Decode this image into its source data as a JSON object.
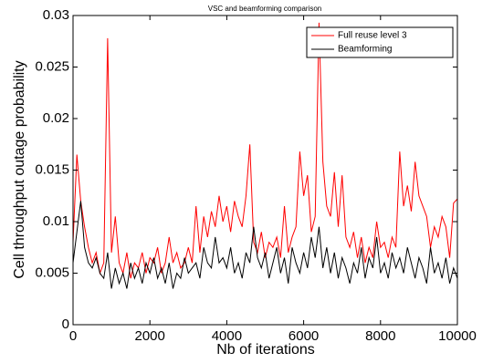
{
  "chart_data": {
    "type": "line",
    "title": "VSC and beamforming comparison",
    "xlabel": "Nb of iterations",
    "ylabel": "Cell throughput outage probability",
    "x": [
      0,
      100,
      200,
      300,
      400,
      500,
      600,
      700,
      800,
      900,
      1000,
      1100,
      1200,
      1300,
      1400,
      1500,
      1600,
      1700,
      1800,
      1900,
      2000,
      2100,
      2200,
      2300,
      2400,
      2500,
      2600,
      2700,
      2800,
      2900,
      3000,
      3100,
      3200,
      3300,
      3400,
      3500,
      3600,
      3700,
      3800,
      3900,
      4000,
      4100,
      4200,
      4300,
      4400,
      4500,
      4600,
      4700,
      4800,
      4900,
      5000,
      5100,
      5200,
      5300,
      5400,
      5500,
      5600,
      5700,
      5800,
      5900,
      6000,
      6100,
      6200,
      6300,
      6400,
      6500,
      6600,
      6700,
      6800,
      6900,
      7000,
      7100,
      7200,
      7300,
      7400,
      7500,
      7600,
      7700,
      7800,
      7900,
      8000,
      8100,
      8200,
      8300,
      8400,
      8500,
      8600,
      8700,
      8800,
      8900,
      9000,
      9100,
      9200,
      9300,
      9400,
      9500,
      9600,
      9700,
      9800,
      9900,
      10000
    ],
    "series": [
      {
        "name": "Full reuse level 3",
        "color": "#ff0000",
        "values": [
          0.008,
          0.0165,
          0.012,
          0.0095,
          0.0075,
          0.006,
          0.007,
          0.005,
          0.006,
          0.0278,
          0.007,
          0.0105,
          0.006,
          0.005,
          0.007,
          0.0045,
          0.006,
          0.0055,
          0.007,
          0.005,
          0.0065,
          0.006,
          0.0075,
          0.005,
          0.006,
          0.0085,
          0.006,
          0.007,
          0.0055,
          0.006,
          0.0075,
          0.006,
          0.0115,
          0.007,
          0.0105,
          0.0085,
          0.011,
          0.0095,
          0.0125,
          0.01,
          0.0115,
          0.009,
          0.012,
          0.0105,
          0.0095,
          0.0125,
          0.0175,
          0.008,
          0.007,
          0.009,
          0.0065,
          0.008,
          0.0075,
          0.0085,
          0.0065,
          0.0115,
          0.007,
          0.0085,
          0.0095,
          0.0168,
          0.0125,
          0.0145,
          0.009,
          0.0105,
          0.0293,
          0.0158,
          0.0115,
          0.0105,
          0.0148,
          0.0095,
          0.0145,
          0.0085,
          0.0075,
          0.009,
          0.0065,
          0.0085,
          0.006,
          0.0075,
          0.0065,
          0.01,
          0.0075,
          0.008,
          0.0065,
          0.0085,
          0.0075,
          0.0168,
          0.0115,
          0.0135,
          0.011,
          0.0158,
          0.0125,
          0.0115,
          0.0105,
          0.0075,
          0.0095,
          0.0085,
          0.0105,
          0.0095,
          0.0065,
          0.0118,
          0.0122
        ]
      },
      {
        "name": "Beamforming",
        "color": "#000000",
        "values": [
          0.006,
          0.009,
          0.012,
          0.0075,
          0.006,
          0.0055,
          0.0065,
          0.005,
          0.0045,
          0.007,
          0.0035,
          0.0055,
          0.004,
          0.005,
          0.0035,
          0.006,
          0.0045,
          0.0055,
          0.004,
          0.006,
          0.005,
          0.0065,
          0.0045,
          0.0055,
          0.004,
          0.006,
          0.0035,
          0.005,
          0.0045,
          0.0065,
          0.005,
          0.0055,
          0.006,
          0.0045,
          0.0075,
          0.006,
          0.0055,
          0.0085,
          0.006,
          0.0065,
          0.0055,
          0.0075,
          0.005,
          0.006,
          0.0045,
          0.007,
          0.006,
          0.0095,
          0.0065,
          0.0055,
          0.007,
          0.0045,
          0.006,
          0.0075,
          0.005,
          0.0065,
          0.004,
          0.0075,
          0.006,
          0.005,
          0.007,
          0.0055,
          0.0085,
          0.0065,
          0.0095,
          0.0055,
          0.0075,
          0.005,
          0.007,
          0.0045,
          0.0065,
          0.0055,
          0.004,
          0.006,
          0.005,
          0.0075,
          0.0045,
          0.0065,
          0.0055,
          0.0085,
          0.005,
          0.006,
          0.0045,
          0.007,
          0.0055,
          0.0065,
          0.005,
          0.0075,
          0.006,
          0.0045,
          0.0065,
          0.0055,
          0.004,
          0.0075,
          0.005,
          0.006,
          0.0045,
          0.0065,
          0.004,
          0.0055,
          0.0045
        ]
      }
    ],
    "xlim": [
      0,
      10000
    ],
    "xticks": [
      0,
      2000,
      4000,
      6000,
      8000,
      10000
    ],
    "ylim": [
      0,
      0.03
    ],
    "yticks": [
      0,
      0.005,
      0.01,
      0.015,
      0.02,
      0.025,
      0.03
    ],
    "legend": "upper right"
  }
}
